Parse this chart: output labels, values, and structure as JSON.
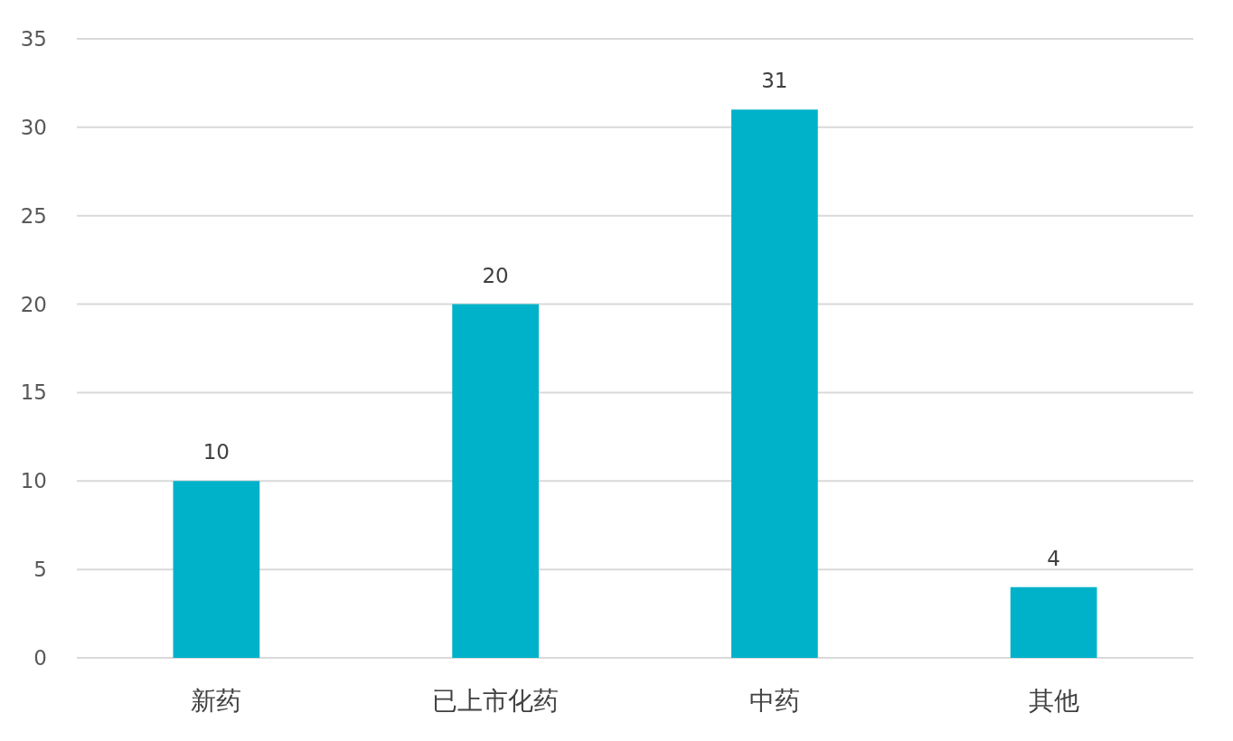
{
  "chart_data": {
    "type": "bar",
    "categories": [
      "新药",
      "已上市化药",
      "中药",
      "其他"
    ],
    "values": [
      10,
      20,
      31,
      4
    ],
    "color": "#00b2c9",
    "ylim": [
      0,
      35
    ],
    "yticks": [
      0,
      5,
      10,
      15,
      20,
      25,
      30,
      35
    ],
    "grid": "y",
    "data_labels": true
  }
}
